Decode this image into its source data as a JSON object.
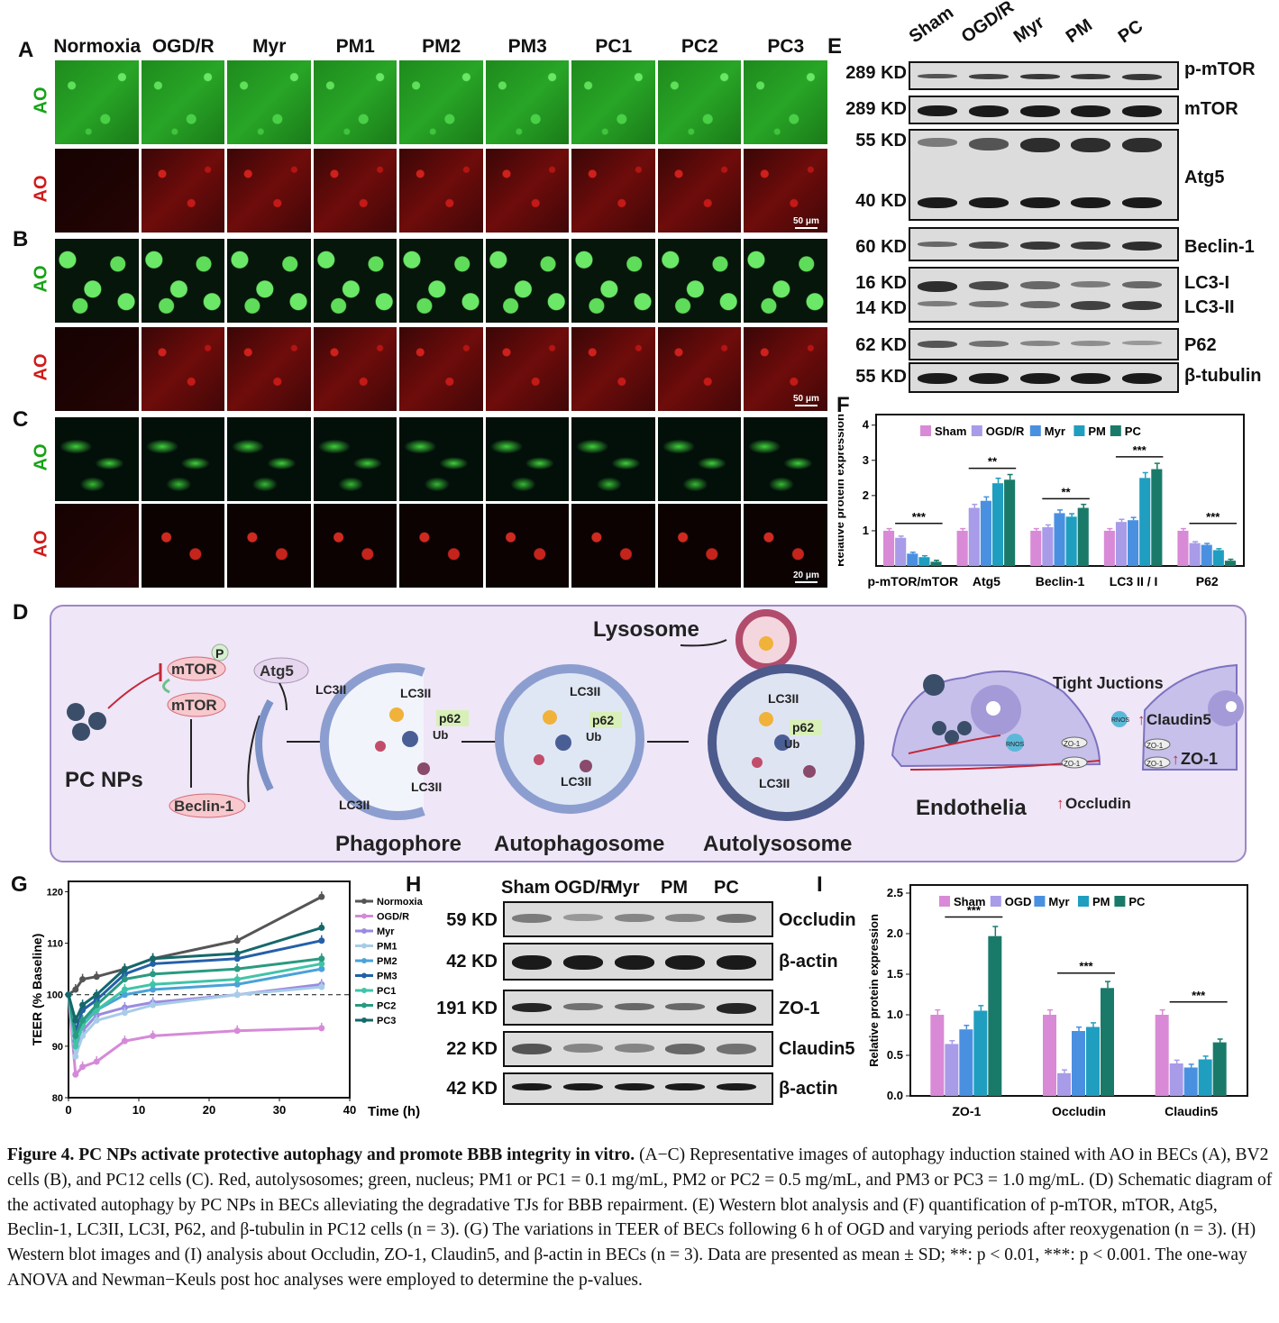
{
  "panel_letters": {
    "A": "A",
    "B": "B",
    "C": "C",
    "D": "D",
    "E": "E",
    "F": "F",
    "G": "G",
    "H": "H",
    "I": "I"
  },
  "abc": {
    "columns": [
      "Normoxia",
      "OGD/R",
      "Myr",
      "PM1",
      "PM2",
      "PM3",
      "PC1",
      "PC2",
      "PC3"
    ],
    "row_label": "AO",
    "scale_ab": "50 μm",
    "scale_c": "20 μm"
  },
  "e_blot": {
    "lanes": [
      "Sham",
      "OGD/R",
      "Myr",
      "PM",
      "PC"
    ],
    "rows": [
      {
        "kd": "289 KD",
        "protein": "p-mTOR"
      },
      {
        "kd": "289 KD",
        "protein": "mTOR"
      },
      {
        "kd": "55 KD",
        "protein": "Atg5"
      },
      {
        "kd": "40 KD",
        "protein": ""
      },
      {
        "kd": "60 KD",
        "protein": "Beclin-1"
      },
      {
        "kd": "16 KD",
        "protein": "LC3-I"
      },
      {
        "kd": "14 KD",
        "protein": "LC3-II"
      },
      {
        "kd": "62 KD",
        "protein": "P62"
      },
      {
        "kd": "55 KD",
        "protein": "β-tubulin"
      }
    ]
  },
  "diagram_d": {
    "lysosome": "Lysosome",
    "pc_nps": "PC NPs",
    "mtor": "mTOR",
    "p": "P",
    "atg5": "Atg5",
    "beclin": "Beclin-1",
    "lc3ii": "LC3II",
    "p62": "p62",
    "ub": "Ub",
    "phagophore": "Phagophore",
    "autophagosome": "Autophagosome",
    "autolysosome": "Autolysosome",
    "tight_junctions": "Tight Juctions",
    "claudin5": "Claudin5",
    "zo1": "ZO-1",
    "occludin": "Occludin",
    "endothelia": "Endothelia",
    "rnos": "RNOS"
  },
  "h_blot": {
    "lanes": [
      "Sham",
      "OGD/R",
      "Myr",
      "PM",
      "PC"
    ],
    "rows": [
      {
        "kd": "59 KD",
        "protein": "Occludin"
      },
      {
        "kd": "42 KD",
        "protein": "β-actin"
      },
      {
        "kd": "191 KD",
        "protein": "ZO-1"
      },
      {
        "kd": "22 KD",
        "protein": "Claudin5"
      },
      {
        "kd": "42 KD",
        "protein": "β-actin"
      }
    ]
  },
  "colors": {
    "sham": "#d98ad6",
    "ogd": "#a89be8",
    "myr": "#4a90e0",
    "pm": "#1f9ec0",
    "pc": "#1a7a6a"
  },
  "chart_data": [
    {
      "panel": "F",
      "type": "bar",
      "ylabel": "Relative protein expression",
      "ylim": [
        0,
        4.3
      ],
      "yticks": [
        "1",
        "2",
        "3",
        "4"
      ],
      "legend": "top",
      "categories": [
        "p-mTOR/mTOR",
        "Atg5",
        "Beclin-1",
        "LC3 II / I",
        "P62"
      ],
      "series": [
        {
          "name": "Sham",
          "values": [
            1.0,
            1.0,
            1.0,
            1.0,
            1.0
          ]
        },
        {
          "name": "OGD/R",
          "values": [
            0.8,
            1.65,
            1.1,
            1.25,
            0.65
          ]
        },
        {
          "name": "Myr",
          "values": [
            0.35,
            1.85,
            1.5,
            1.3,
            0.6
          ]
        },
        {
          "name": "PM",
          "values": [
            0.25,
            2.35,
            1.4,
            2.5,
            0.45
          ]
        },
        {
          "name": "PC",
          "values": [
            0.12,
            2.45,
            1.65,
            2.75,
            0.15
          ]
        }
      ],
      "significance": [
        "***",
        "**",
        "**",
        "***",
        "***"
      ]
    },
    {
      "panel": "G",
      "type": "line",
      "xlabel": "Time (h)",
      "ylabel": "TEER (% Baseline)",
      "xlim": [
        0,
        40
      ],
      "ylim": [
        80,
        122
      ],
      "xticks": [
        "0",
        "10",
        "20",
        "30",
        "40"
      ],
      "yticks": [
        "80",
        "90",
        "100",
        "110",
        "120"
      ],
      "baseline": 100,
      "legend": "right",
      "x": [
        0,
        1,
        2,
        4,
        8,
        12,
        24,
        36
      ],
      "series": [
        {
          "name": "Normoxia",
          "color": "#555555",
          "values": [
            100,
            101,
            103,
            103.5,
            105,
            107,
            110.5,
            119
          ]
        },
        {
          "name": "OGD/R",
          "color": "#d58ad8",
          "values": [
            100,
            84.5,
            86,
            87,
            91,
            92,
            93,
            93.5
          ]
        },
        {
          "name": "Myr",
          "color": "#9b8ae0",
          "values": [
            100,
            89,
            93,
            96,
            97.5,
            98.5,
            100,
            102
          ]
        },
        {
          "name": "PM1",
          "color": "#a8cce8",
          "values": [
            100,
            88,
            92,
            95,
            96.5,
            98,
            100,
            101.5
          ]
        },
        {
          "name": "PM2",
          "color": "#4aa2d8",
          "values": [
            100,
            91,
            95,
            97,
            100,
            101,
            102,
            105
          ]
        },
        {
          "name": "PM3",
          "color": "#2560a8",
          "values": [
            100,
            93,
            97,
            99,
            104,
            106,
            107,
            110.5
          ]
        },
        {
          "name": "PC1",
          "color": "#40c4a8",
          "values": [
            100,
            90,
            94,
            97,
            101,
            102,
            103,
            106
          ]
        },
        {
          "name": "PC2",
          "color": "#2a9a80",
          "values": [
            100,
            92,
            95,
            98,
            103,
            104,
            105,
            107
          ]
        },
        {
          "name": "PC3",
          "color": "#16686a",
          "values": [
            100,
            95,
            98,
            100,
            105,
            107,
            108,
            113
          ]
        }
      ]
    },
    {
      "panel": "I",
      "type": "bar",
      "ylabel": "Relative protein expression",
      "ylim": [
        0,
        2.6
      ],
      "yticks": [
        "0.0",
        "0.5",
        "1.0",
        "1.5",
        "2.0",
        "2.5"
      ],
      "legend": "top",
      "categories": [
        "ZO-1",
        "Occludin",
        "Claudin5"
      ],
      "series": [
        {
          "name": "Sham",
          "values": [
            1.0,
            1.0,
            1.0
          ]
        },
        {
          "name": "OGD",
          "values": [
            0.64,
            0.28,
            0.4
          ]
        },
        {
          "name": "Myr",
          "values": [
            0.82,
            0.8,
            0.35
          ]
        },
        {
          "name": "PM",
          "values": [
            1.05,
            0.85,
            0.45
          ]
        },
        {
          "name": "PC",
          "values": [
            1.97,
            1.33,
            0.66
          ]
        }
      ],
      "significance": [
        "***",
        "***",
        "***"
      ]
    }
  ],
  "caption": {
    "title": "Figure 4. PC NPs activate protective autophagy and promote BBB integrity in vitro.",
    "body": "(A−C) Representative images of autophagy induction stained with AO in BECs (A), BV2 cells (B), and PC12 cells (C). Red, autolysosomes; green, nucleus; PM1 or PC1 = 0.1 mg/mL, PM2 or PC2 = 0.5 mg/mL, and PM3 or PC3 = 1.0 mg/mL. (D) Schematic diagram of the activated autophagy by PC NPs in BECs alleviating the degradative TJs for BBB repairment. (E) Western blot analysis and (F) quantification of p-mTOR, mTOR, Atg5, Beclin-1, LC3II, LC3I, P62, and β-tubulin in PC12 cells (n = 3). (G) The variations in TEER of BECs following 6 h of OGD and varying periods after reoxygenation (n = 3). (H) Western blot images and (I) analysis about Occludin, ZO-1, Claudin5, and β-actin in BECs (n = 3). Data are presented as mean ± SD; **: p < 0.01, ***: p < 0.001. The one-way ANOVA and Newman−Keuls post hoc analyses were employed to determine the p-values."
  }
}
